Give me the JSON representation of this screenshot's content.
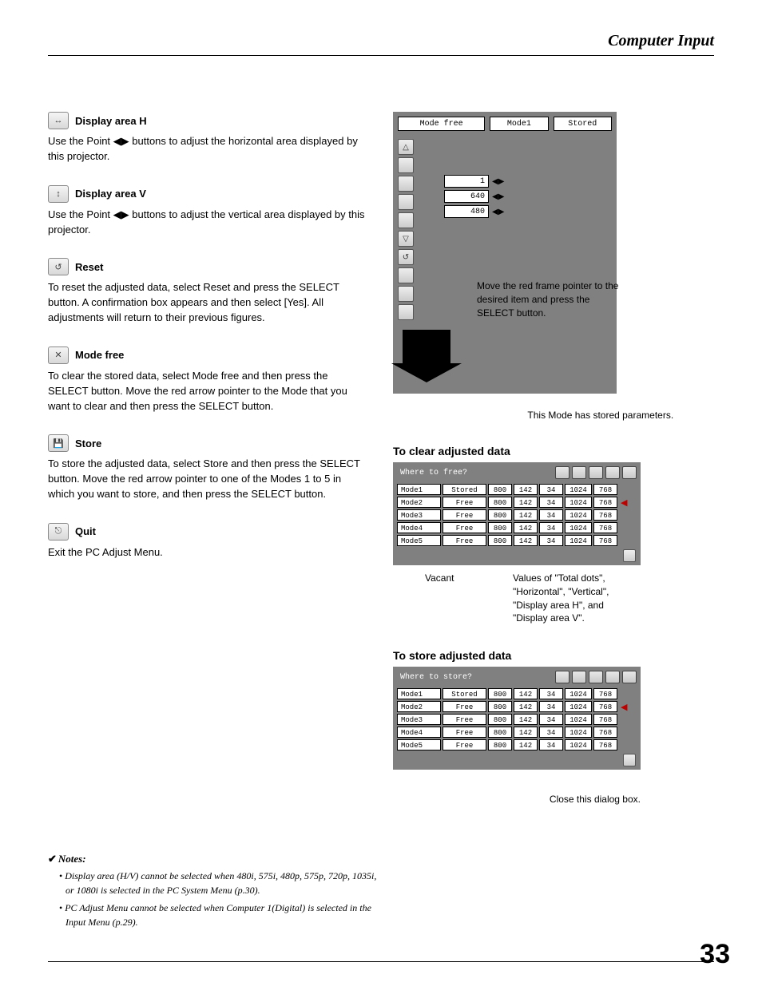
{
  "page": {
    "header": "Computer Input",
    "number": "33"
  },
  "sections": {
    "displayH": {
      "title": "Display area H",
      "body": "Use the Point ◀▶ buttons to adjust the horizontal area displayed by this projector."
    },
    "displayV": {
      "title": "Display area V",
      "body": "Use the Point ◀▶ buttons to adjust the vertical area displayed by this projector."
    },
    "reset": {
      "title": "Reset",
      "body": "To reset the adjusted data, select Reset and press the SELECT button. A confirmation box appears and then select [Yes]. All adjustments will return to their previous figures."
    },
    "modeFree": {
      "title": "Mode free",
      "body": "To clear the stored data, select Mode free and then press the SELECT button. Move the red arrow pointer to the Mode that you want to clear and then press the SELECT button."
    },
    "store": {
      "title": "Store",
      "body": "To store the adjusted data, select Store and then press the SELECT button. Move the red arrow pointer to one of the Modes 1 to 5 in which you want to store, and then press the SELECT button."
    },
    "quit": {
      "title": "Quit",
      "body": "Exit the PC Adjust Menu."
    }
  },
  "fig1": {
    "topbar": {
      "left": "Mode free",
      "mid": "Mode1",
      "right": "Stored"
    },
    "values": {
      "v1": "1",
      "v2": "640",
      "v3": "480"
    },
    "note": "Move the red frame pointer to the desired item and press the SELECT button."
  },
  "clearSection": {
    "caption": "To clear adjusted data",
    "sideNote": "This Mode has stored parameters.",
    "tableTitle": "Where to free?",
    "rows": [
      {
        "mode": "Mode1",
        "status": "Stored",
        "v": [
          "800",
          "142",
          "34",
          "1024",
          "768"
        ],
        "arrow": false
      },
      {
        "mode": "Mode2",
        "status": "Free",
        "v": [
          "800",
          "142",
          "34",
          "1024",
          "768"
        ],
        "arrow": true
      },
      {
        "mode": "Mode3",
        "status": "Free",
        "v": [
          "800",
          "142",
          "34",
          "1024",
          "768"
        ],
        "arrow": false
      },
      {
        "mode": "Mode4",
        "status": "Free",
        "v": [
          "800",
          "142",
          "34",
          "1024",
          "768"
        ],
        "arrow": false
      },
      {
        "mode": "Mode5",
        "status": "Free",
        "v": [
          "800",
          "142",
          "34",
          "1024",
          "768"
        ],
        "arrow": false
      }
    ],
    "underLeft": "Vacant",
    "underRight": "Values of \"Total dots\", \"Horizontal\", \"Vertical\", \"Display area H\", and \"Display area V\"."
  },
  "storeSection": {
    "caption": "To store adjusted data",
    "tableTitle": "Where to store?",
    "rows": [
      {
        "mode": "Mode1",
        "status": "Stored",
        "v": [
          "800",
          "142",
          "34",
          "1024",
          "768"
        ],
        "arrow": false
      },
      {
        "mode": "Mode2",
        "status": "Free",
        "v": [
          "800",
          "142",
          "34",
          "1024",
          "768"
        ],
        "arrow": true
      },
      {
        "mode": "Mode3",
        "status": "Free",
        "v": [
          "800",
          "142",
          "34",
          "1024",
          "768"
        ],
        "arrow": false
      },
      {
        "mode": "Mode4",
        "status": "Free",
        "v": [
          "800",
          "142",
          "34",
          "1024",
          "768"
        ],
        "arrow": false
      },
      {
        "mode": "Mode5",
        "status": "Free",
        "v": [
          "800",
          "142",
          "34",
          "1024",
          "768"
        ],
        "arrow": false
      }
    ],
    "closeLabel": "Close this dialog box."
  },
  "notes": {
    "title": "Notes:",
    "items": [
      "Display area (H/V) cannot be selected when 480i, 575i, 480p, 575p, 720p, 1035i, or 1080i is selected in the PC System Menu (p.30).",
      "PC Adjust Menu cannot be selected when Computer 1(Digital) is selected in the Input Menu (p.29)."
    ]
  }
}
